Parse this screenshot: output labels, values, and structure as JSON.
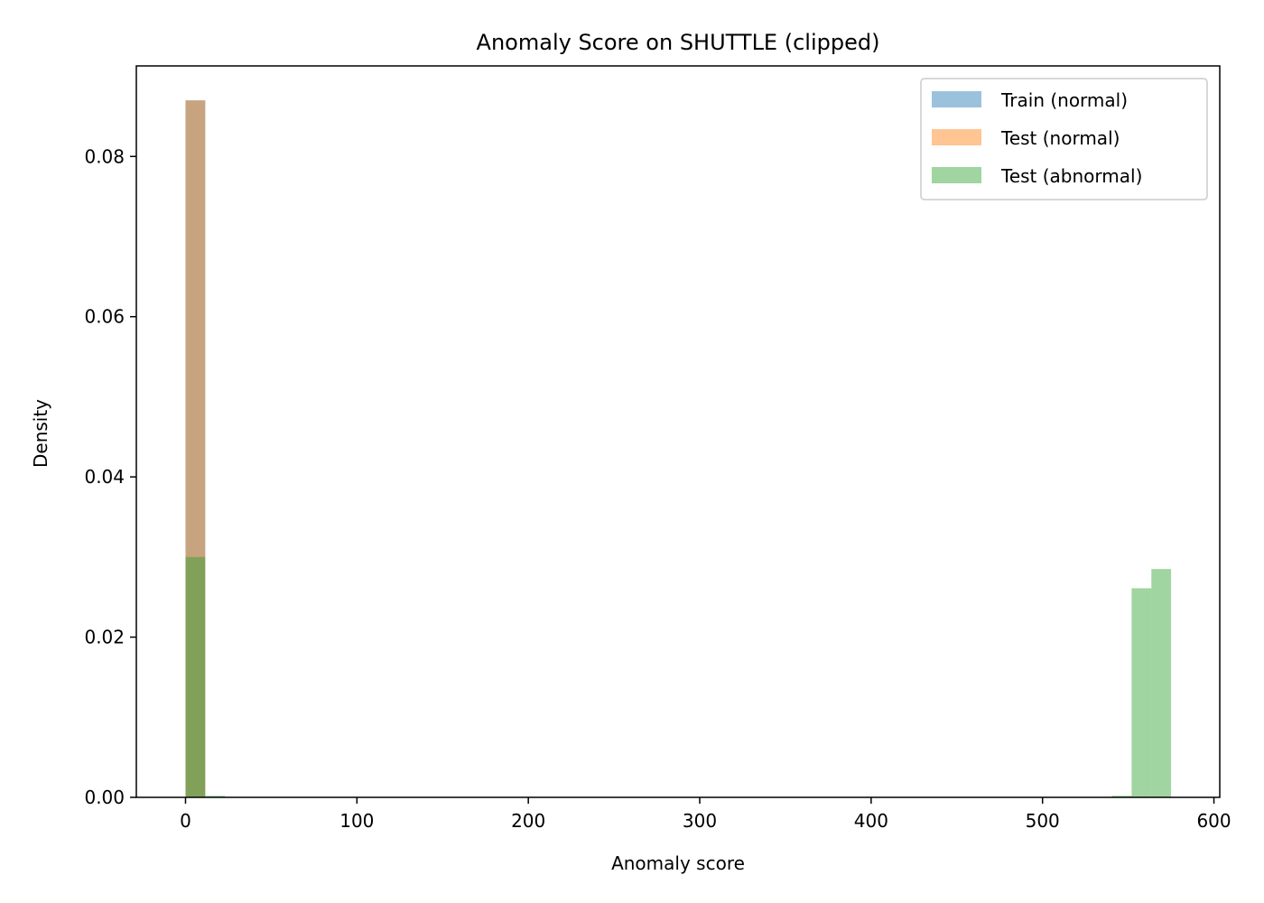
{
  "chart_data": {
    "type": "bar",
    "title": "Anomaly Score on SHUTTLE (clipped)",
    "xlabel": "Anomaly score",
    "ylabel": "Density",
    "xlim": [
      -28.7,
      603.4
    ],
    "ylim": [
      0,
      0.0913
    ],
    "xticks": [
      0,
      100,
      200,
      300,
      400,
      500,
      600
    ],
    "yticks": [
      0.0,
      0.02,
      0.04,
      0.06,
      0.08
    ],
    "ytick_labels": [
      "0.00",
      "0.02",
      "0.04",
      "0.06",
      "0.08"
    ],
    "grid": false,
    "legend_position": "top-right",
    "bin_width": 11.5,
    "series": [
      {
        "name": "Train (normal)",
        "color": "#1f77b4",
        "alpha": 0.45,
        "bins": [
          {
            "x0": 0,
            "x1": 11.5,
            "y": 0.087
          }
        ]
      },
      {
        "name": "Test (normal)",
        "color": "#ff7f0e",
        "alpha": 0.45,
        "bins": [
          {
            "x0": 0,
            "x1": 11.5,
            "y": 0.087
          }
        ]
      },
      {
        "name": "Test (abnormal)",
        "color": "#2ca02c",
        "alpha": 0.45,
        "bins": [
          {
            "x0": 0,
            "x1": 11.5,
            "y": 0.03
          },
          {
            "x0": 11.5,
            "x1": 23.0,
            "y": 0.0002
          },
          {
            "x0": 540.5,
            "x1": 552.0,
            "y": 0.0002
          },
          {
            "x0": 552.0,
            "x1": 563.5,
            "y": 0.0261
          },
          {
            "x0": 563.5,
            "x1": 575.0,
            "y": 0.0285
          }
        ]
      }
    ]
  }
}
